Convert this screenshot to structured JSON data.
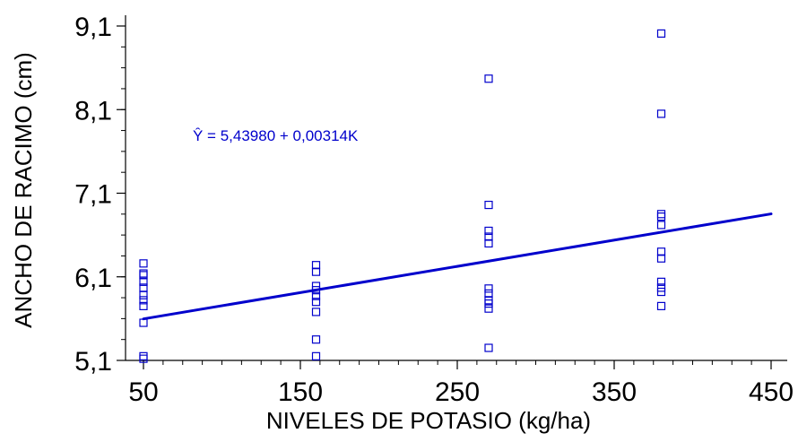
{
  "chart_data": {
    "type": "scatter",
    "title": "",
    "xlabel": "NIVELES DE POTASIO (kg/ha)",
    "ylabel": "ANCHO DE RACIMO (cm)",
    "xlim": [
      50,
      450
    ],
    "ylim": [
      5.1,
      9.1
    ],
    "x_ticks": [
      50,
      150,
      250,
      350,
      450
    ],
    "x_tick_labels": [
      "50",
      "150",
      "250",
      "350",
      "450"
    ],
    "y_ticks": [
      5.1,
      6.1,
      7.1,
      8.1,
      9.1
    ],
    "y_tick_labels": [
      "5,1",
      "6,1",
      "7,1",
      "8,1",
      "9,1"
    ],
    "x_minor_step": 12.5,
    "y_minor_step": 0.25,
    "annotation": "Ŷ = 5,43980 + 0,00314K",
    "grid": false,
    "series": [
      {
        "kind": "points",
        "marker": "square",
        "color": "#0000cc",
        "points": [
          [
            50,
            5.12
          ],
          [
            50,
            5.15
          ],
          [
            50,
            5.55
          ],
          [
            50,
            5.75
          ],
          [
            50,
            5.82
          ],
          [
            50,
            5.88
          ],
          [
            50,
            5.97
          ],
          [
            50,
            6.04
          ],
          [
            50,
            6.12
          ],
          [
            50,
            6.14
          ],
          [
            50,
            6.26
          ],
          [
            160,
            5.15
          ],
          [
            160,
            5.35
          ],
          [
            160,
            5.68
          ],
          [
            160,
            5.8
          ],
          [
            160,
            5.87
          ],
          [
            160,
            5.94
          ],
          [
            160,
            5.99
          ],
          [
            160,
            6.16
          ],
          [
            160,
            6.24
          ],
          [
            270,
            5.25
          ],
          [
            270,
            5.72
          ],
          [
            270,
            5.78
          ],
          [
            270,
            5.82
          ],
          [
            270,
            5.9
          ],
          [
            270,
            5.96
          ],
          [
            270,
            6.5
          ],
          [
            270,
            6.58
          ],
          [
            270,
            6.65
          ],
          [
            270,
            6.96
          ],
          [
            270,
            8.47
          ],
          [
            380,
            5.75
          ],
          [
            380,
            5.92
          ],
          [
            380,
            5.97
          ],
          [
            380,
            6.04
          ],
          [
            380,
            6.32
          ],
          [
            380,
            6.4
          ],
          [
            380,
            6.72
          ],
          [
            380,
            6.82
          ],
          [
            380,
            6.85
          ],
          [
            380,
            8.05
          ],
          [
            380,
            9.01
          ]
        ]
      },
      {
        "kind": "line",
        "color": "#0000cc",
        "intercept": 5.4398,
        "slope": 0.00314,
        "x_range": [
          50,
          450
        ]
      }
    ]
  }
}
